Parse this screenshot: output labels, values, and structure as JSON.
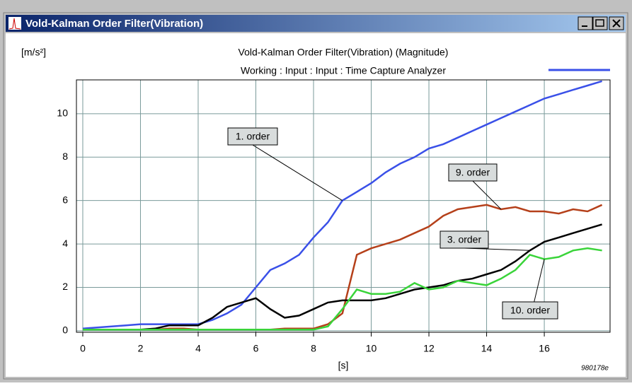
{
  "window": {
    "title": "Vold-Kalman Order Filter(Vibration)"
  },
  "chart_data": {
    "type": "line",
    "title": "Vold-Kalman Order Filter(Vibration) (Magnitude)",
    "subtitle": "Working : Input : Input : Time Capture Analyzer",
    "y_label": "[m/s²]",
    "x_label": "[s]",
    "figure_code": "980178e",
    "x": [
      0,
      0.5,
      1,
      1.5,
      2,
      2.5,
      3,
      3.5,
      4,
      4.5,
      5,
      5.5,
      6,
      6.5,
      7,
      7.5,
      8,
      8.5,
      9,
      9.5,
      10,
      10.5,
      11,
      11.5,
      12,
      12.5,
      13,
      13.5,
      14,
      14.5,
      15,
      15.5,
      16,
      16.5,
      17,
      17.5,
      18
    ],
    "series": [
      {
        "name": "1. order",
        "color": "#3a50e8",
        "values": [
          0.1,
          0.15,
          0.2,
          0.25,
          0.3,
          0.3,
          0.3,
          0.3,
          0.3,
          0.5,
          0.8,
          1.2,
          2.0,
          2.8,
          3.1,
          3.5,
          4.3,
          5.0,
          6.0,
          6.4,
          6.8,
          7.3,
          7.7,
          8.0,
          8.4,
          8.6,
          8.9,
          9.2,
          9.5,
          9.8,
          10.1,
          10.4,
          10.7,
          10.9,
          11.1,
          11.3,
          11.5
        ]
      },
      {
        "name": "9. order",
        "color": "#b5401a",
        "values": [
          0.05,
          0.05,
          0.05,
          0.05,
          0.05,
          0.05,
          0.1,
          0.1,
          0.05,
          0.05,
          0.05,
          0.05,
          0.05,
          0.05,
          0.1,
          0.1,
          0.1,
          0.3,
          0.8,
          3.5,
          3.8,
          4.0,
          4.2,
          4.5,
          4.8,
          5.3,
          5.6,
          5.7,
          5.8,
          5.6,
          5.7,
          5.5,
          5.5,
          5.4,
          5.6,
          5.5,
          5.8
        ]
      },
      {
        "name": "3. order",
        "color": "#000000",
        "values": [
          0.05,
          0.05,
          0.05,
          0.05,
          0.05,
          0.1,
          0.25,
          0.25,
          0.25,
          0.6,
          1.1,
          1.3,
          1.5,
          1.0,
          0.6,
          0.7,
          1.0,
          1.3,
          1.4,
          1.4,
          1.4,
          1.5,
          1.7,
          1.9,
          2.0,
          2.1,
          2.3,
          2.4,
          2.6,
          2.8,
          3.2,
          3.7,
          4.1,
          4.3,
          4.5,
          4.7,
          4.9
        ]
      },
      {
        "name": "10. order",
        "color": "#3ad43a",
        "values": [
          0.05,
          0.05,
          0.05,
          0.05,
          0.05,
          0.05,
          0.05,
          0.05,
          0.05,
          0.05,
          0.05,
          0.05,
          0.05,
          0.05,
          0.05,
          0.05,
          0.05,
          0.2,
          1.0,
          1.9,
          1.7,
          1.7,
          1.8,
          2.2,
          1.9,
          2.0,
          2.3,
          2.2,
          2.1,
          2.4,
          2.8,
          3.5,
          3.3,
          3.4,
          3.7,
          3.8,
          3.7
        ]
      }
    ],
    "xlim": [
      -0.22,
      18.28
    ],
    "ylim": [
      -0.07,
      11.56
    ],
    "xticks": [
      0,
      2,
      4,
      6,
      8,
      10,
      12,
      14,
      16
    ],
    "yticks": [
      0,
      2,
      4,
      6,
      8,
      10
    ],
    "grid": true
  }
}
